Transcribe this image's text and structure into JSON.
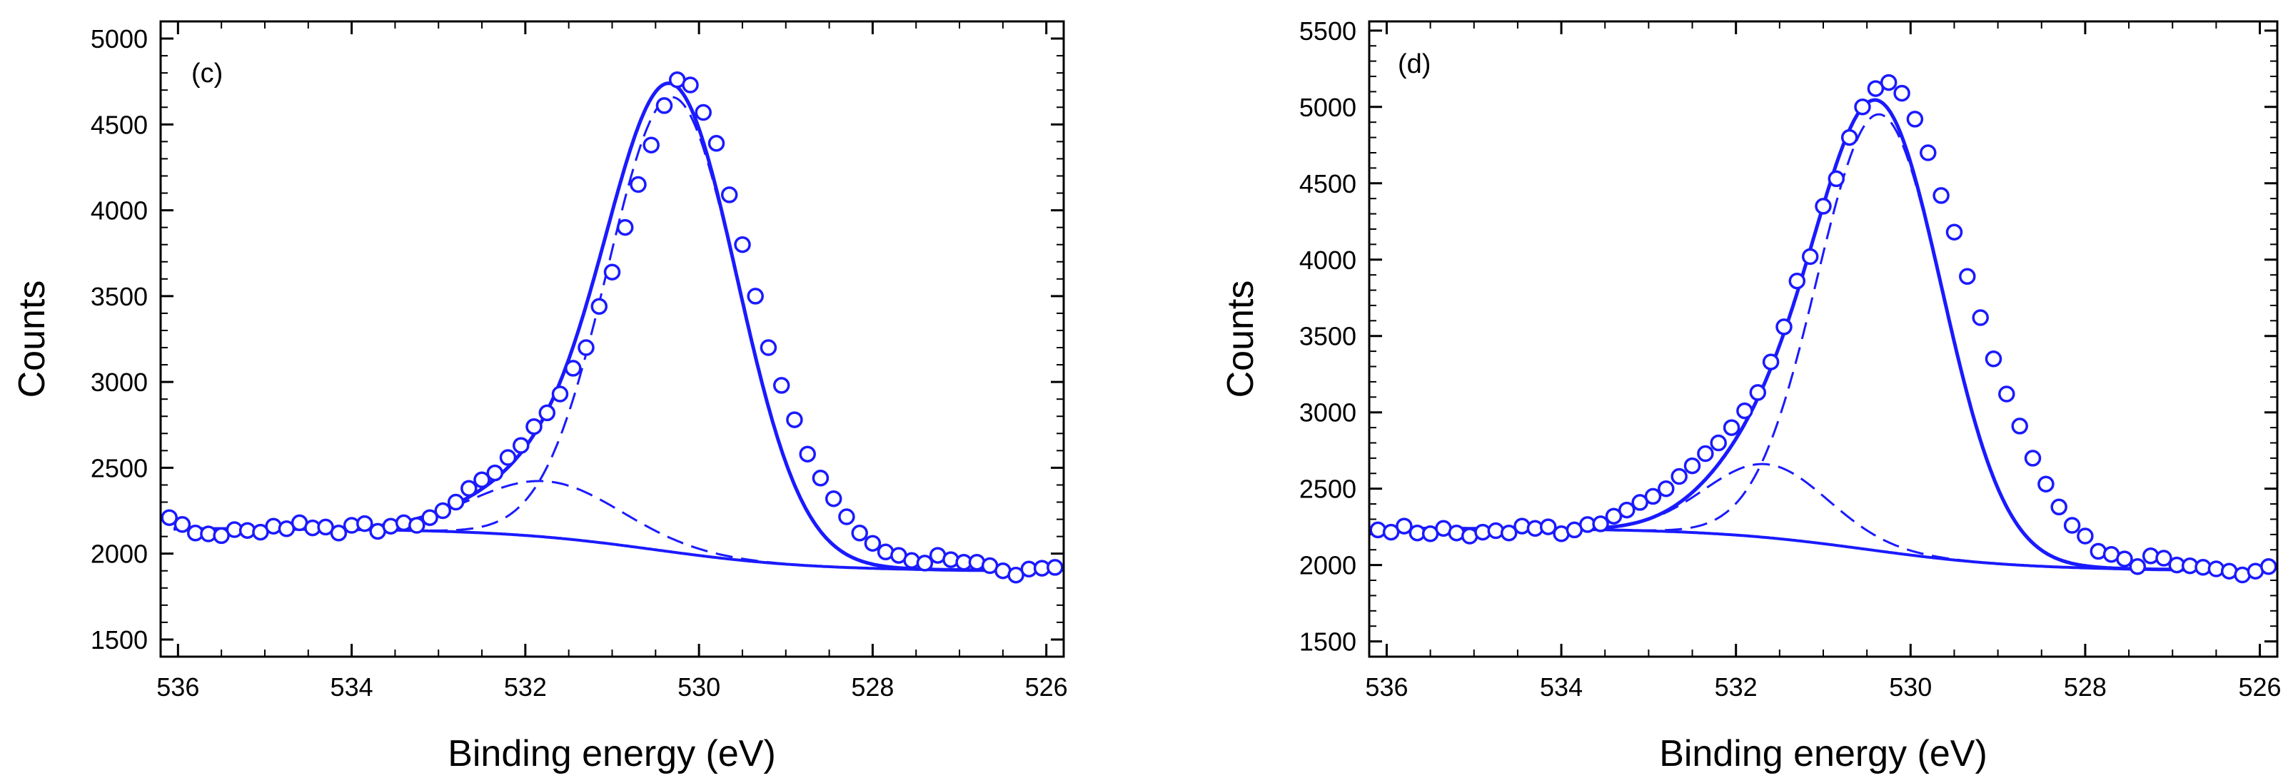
{
  "chart_data": [
    {
      "type": "scatter",
      "panel_label": "(c)",
      "xlabel": "Binding energy (eV)",
      "ylabel": "Counts",
      "xlim": [
        536.2,
        525.8
      ],
      "ylim": [
        1400,
        5100
      ],
      "xticks": [
        536,
        534,
        532,
        530,
        528,
        526
      ],
      "xtick_labels": [
        "536",
        "534",
        "532",
        "530",
        "528",
        "526"
      ],
      "yticks": [
        1500,
        2000,
        2500,
        3000,
        3500,
        4000,
        4500,
        5000
      ],
      "ytick_labels": [
        "1500",
        "2000",
        "2500",
        "3000",
        "3500",
        "4000",
        "4500",
        "5000"
      ],
      "color": "#1a1aff",
      "background": {
        "left": 2145,
        "right": 1900,
        "center": 530.5,
        "width": 0.9
      },
      "components": [
        {
          "name": "main peak",
          "center": 530.3,
          "amplitude": 2650,
          "sigma": 0.75,
          "style": "dashed"
        },
        {
          "name": "shoulder peak",
          "center": 531.75,
          "amplitude": 325,
          "sigma": 0.85,
          "style": "dashed"
        }
      ],
      "data": [
        [
          536.1,
          2210
        ],
        [
          535.95,
          2170
        ],
        [
          535.8,
          2120
        ],
        [
          535.65,
          2115
        ],
        [
          535.5,
          2105
        ],
        [
          535.35,
          2140
        ],
        [
          535.2,
          2135
        ],
        [
          535.05,
          2125
        ],
        [
          534.9,
          2160
        ],
        [
          534.75,
          2145
        ],
        [
          534.6,
          2180
        ],
        [
          534.45,
          2150
        ],
        [
          534.3,
          2155
        ],
        [
          534.15,
          2120
        ],
        [
          534.0,
          2165
        ],
        [
          533.85,
          2175
        ],
        [
          533.7,
          2130
        ],
        [
          533.55,
          2160
        ],
        [
          533.4,
          2180
        ],
        [
          533.25,
          2165
        ],
        [
          533.1,
          2210
        ],
        [
          532.95,
          2250
        ],
        [
          532.8,
          2300
        ],
        [
          532.65,
          2380
        ],
        [
          532.5,
          2430
        ],
        [
          532.35,
          2470
        ],
        [
          532.2,
          2560
        ],
        [
          532.05,
          2630
        ],
        [
          531.9,
          2740
        ],
        [
          531.75,
          2820
        ],
        [
          531.6,
          2930
        ],
        [
          531.45,
          3080
        ],
        [
          531.3,
          3200
        ],
        [
          531.15,
          3440
        ],
        [
          531.0,
          3640
        ],
        [
          530.85,
          3900
        ],
        [
          530.7,
          4150
        ],
        [
          530.55,
          4380
        ],
        [
          530.4,
          4610
        ],
        [
          530.25,
          4760
        ],
        [
          530.1,
          4730
        ],
        [
          529.95,
          4570
        ],
        [
          529.8,
          4390
        ],
        [
          529.65,
          4090
        ],
        [
          529.5,
          3800
        ],
        [
          529.35,
          3500
        ],
        [
          529.2,
          3200
        ],
        [
          529.05,
          2980
        ],
        [
          528.9,
          2780
        ],
        [
          528.75,
          2580
        ],
        [
          528.6,
          2440
        ],
        [
          528.45,
          2320
        ],
        [
          528.3,
          2215
        ],
        [
          528.15,
          2120
        ],
        [
          528.0,
          2060
        ],
        [
          527.85,
          2010
        ],
        [
          527.7,
          1990
        ],
        [
          527.55,
          1960
        ],
        [
          527.4,
          1945
        ],
        [
          527.25,
          1990
        ],
        [
          527.1,
          1965
        ],
        [
          526.95,
          1950
        ],
        [
          526.8,
          1950
        ],
        [
          526.65,
          1930
        ],
        [
          526.5,
          1900
        ],
        [
          526.35,
          1875
        ],
        [
          526.2,
          1910
        ],
        [
          526.05,
          1915
        ],
        [
          525.9,
          1920
        ]
      ]
    },
    {
      "type": "scatter",
      "panel_label": "(d)",
      "xlabel": "Binding energy (eV)",
      "ylabel": "Counts",
      "xlim": [
        536.2,
        525.8
      ],
      "ylim": [
        1400,
        5560
      ],
      "xticks": [
        536,
        534,
        532,
        530,
        528,
        526
      ],
      "xtick_labels": [
        "536",
        "534",
        "532",
        "530",
        "528",
        "526"
      ],
      "yticks": [
        1500,
        2000,
        2500,
        3000,
        3500,
        4000,
        4500,
        5000,
        5500
      ],
      "ytick_labels": [
        "1500",
        "2000",
        "2500",
        "3000",
        "3500",
        "4000",
        "4500",
        "5000",
        "5500"
      ],
      "color": "#1a1aff",
      "background": {
        "left": 2240,
        "right": 1965,
        "center": 530.5,
        "width": 0.9
      },
      "components": [
        {
          "name": "main peak",
          "center": 530.35,
          "amplitude": 2860,
          "sigma": 0.72,
          "style": "dashed"
        },
        {
          "name": "shoulder peak",
          "center": 531.65,
          "amplitude": 480,
          "sigma": 0.7,
          "style": "dashed"
        }
      ],
      "data": [
        [
          536.1,
          2230
        ],
        [
          535.95,
          2215
        ],
        [
          535.8,
          2255
        ],
        [
          535.65,
          2210
        ],
        [
          535.5,
          2205
        ],
        [
          535.35,
          2240
        ],
        [
          535.2,
          2210
        ],
        [
          535.05,
          2190
        ],
        [
          534.9,
          2215
        ],
        [
          534.75,
          2225
        ],
        [
          534.6,
          2210
        ],
        [
          534.45,
          2255
        ],
        [
          534.3,
          2240
        ],
        [
          534.15,
          2250
        ],
        [
          534.0,
          2205
        ],
        [
          533.85,
          2230
        ],
        [
          533.7,
          2265
        ],
        [
          533.55,
          2270
        ],
        [
          533.4,
          2320
        ],
        [
          533.25,
          2360
        ],
        [
          533.1,
          2410
        ],
        [
          532.95,
          2450
        ],
        [
          532.8,
          2500
        ],
        [
          532.65,
          2580
        ],
        [
          532.5,
          2650
        ],
        [
          532.35,
          2730
        ],
        [
          532.2,
          2800
        ],
        [
          532.05,
          2900
        ],
        [
          531.9,
          3010
        ],
        [
          531.75,
          3130
        ],
        [
          531.6,
          3330
        ],
        [
          531.45,
          3560
        ],
        [
          531.3,
          3860
        ],
        [
          531.15,
          4020
        ],
        [
          531.0,
          4350
        ],
        [
          530.85,
          4530
        ],
        [
          530.7,
          4800
        ],
        [
          530.55,
          5000
        ],
        [
          530.4,
          5120
        ],
        [
          530.25,
          5160
        ],
        [
          530.1,
          5090
        ],
        [
          529.95,
          4920
        ],
        [
          529.8,
          4700
        ],
        [
          529.65,
          4420
        ],
        [
          529.5,
          4180
        ],
        [
          529.35,
          3890
        ],
        [
          529.2,
          3620
        ],
        [
          529.05,
          3350
        ],
        [
          528.9,
          3120
        ],
        [
          528.75,
          2910
        ],
        [
          528.6,
          2700
        ],
        [
          528.45,
          2530
        ],
        [
          528.3,
          2380
        ],
        [
          528.15,
          2260
        ],
        [
          528.0,
          2190
        ],
        [
          527.85,
          2090
        ],
        [
          527.7,
          2070
        ],
        [
          527.55,
          2040
        ],
        [
          527.4,
          1990
        ],
        [
          527.25,
          2060
        ],
        [
          527.1,
          2045
        ],
        [
          526.95,
          2000
        ],
        [
          526.8,
          1995
        ],
        [
          526.65,
          1985
        ],
        [
          526.5,
          1975
        ],
        [
          526.35,
          1960
        ],
        [
          526.2,
          1935
        ],
        [
          526.05,
          1960
        ],
        [
          525.9,
          1990
        ]
      ]
    }
  ]
}
